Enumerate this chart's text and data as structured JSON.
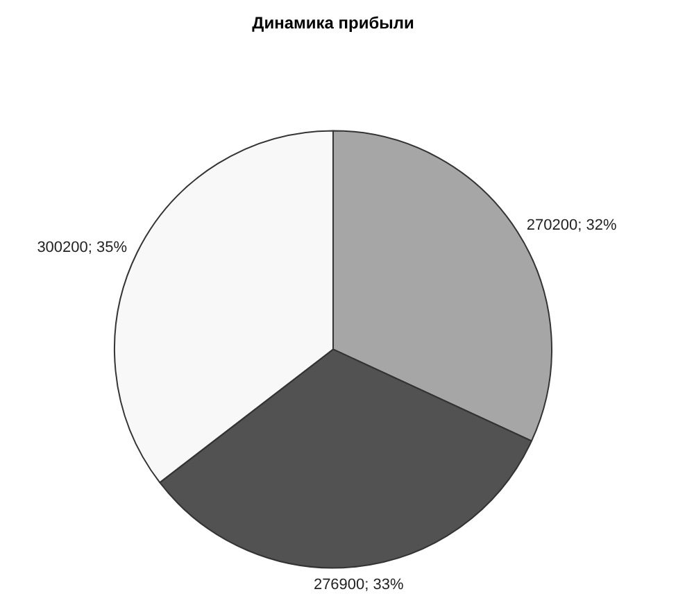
{
  "chart_data": {
    "type": "pie",
    "title": "Динамика прибыли",
    "categories": [
      null,
      null,
      null
    ],
    "values": [
      270200,
      276900,
      300200
    ],
    "colors": [
      "#a6a6a6",
      "#525252",
      "#f8f8f8"
    ],
    "value_labels": [
      "270200; 32%",
      "276900; 33%",
      "300200; 35%"
    ],
    "legend": false
  }
}
